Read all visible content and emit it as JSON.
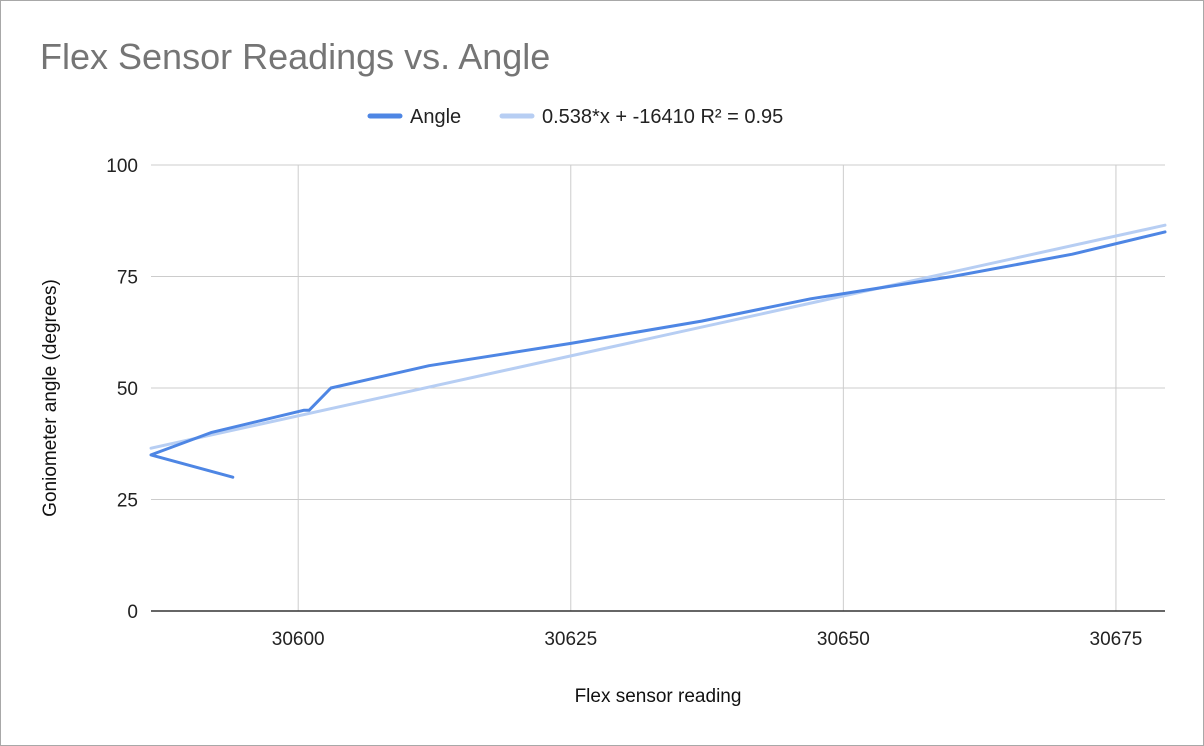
{
  "chart_data": {
    "type": "line",
    "title": "Flex Sensor Readings vs. Angle",
    "xlabel": "Flex sensor reading",
    "ylabel": "Goniometer angle (degrees)",
    "xlim": [
      30586.5,
      30679.5
    ],
    "ylim": [
      0,
      100
    ],
    "x_ticks": [
      30600,
      30625,
      30650,
      30675
    ],
    "x_tick_labels": [
      "30600",
      "30625",
      "30650",
      "30675"
    ],
    "y_ticks": [
      0,
      25,
      50,
      75,
      100
    ],
    "y_tick_labels": [
      "0",
      "25",
      "50",
      "75",
      "100"
    ],
    "grid": true,
    "legend_position": "top",
    "series": [
      {
        "name": "Angle",
        "color": "#4e86e4",
        "x": [
          30594,
          30586.5,
          30592,
          30600.5,
          30601,
          30603,
          30612,
          30625,
          30637,
          30647,
          30660,
          30671,
          30679.5
        ],
        "y": [
          30,
          35,
          40,
          45,
          45,
          50,
          55,
          60,
          65,
          70,
          75,
          80,
          85
        ]
      },
      {
        "name": "0.538*x + -16410 R² = 0.95",
        "color": "#b7cef3",
        "trendline": true,
        "slope": 0.538,
        "intercept": -16410,
        "r_squared": 0.95,
        "x": [
          30586.5,
          30679.5
        ],
        "y": [
          36.5,
          86.5
        ]
      }
    ]
  }
}
